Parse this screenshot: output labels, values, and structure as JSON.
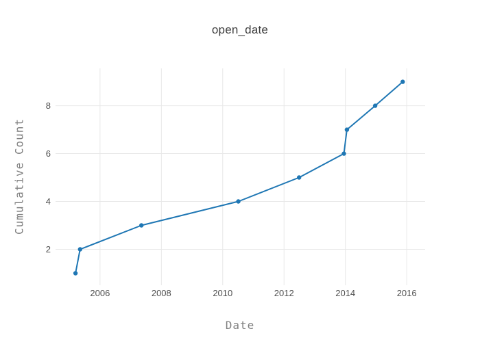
{
  "page": {
    "background_color": "#ffffff"
  },
  "chart_data": {
    "type": "line",
    "title": "open_date",
    "xlabel": "Date",
    "ylabel": "Cumulative Count",
    "legend_position": "none",
    "grid": true,
    "grid_color": "#e8e8e8",
    "series": [
      {
        "name": "open_date",
        "mode": "lines+markers",
        "color": "#1f77b4",
        "x": [
          2005.2,
          2005.35,
          2007.35,
          2010.51,
          2012.49,
          2013.95,
          2014.05,
          2014.97,
          2015.87
        ],
        "y": [
          1,
          2,
          3,
          4,
          5,
          6,
          7,
          8,
          9
        ]
      }
    ],
    "xlim": [
      2004.55,
      2016.6
    ],
    "ylim": [
      0.5,
      9.56
    ],
    "xticks": {
      "values": [
        2006,
        2008,
        2010,
        2012,
        2014,
        2016
      ],
      "labels": [
        "2006",
        "2008",
        "2010",
        "2012",
        "2014",
        "2016"
      ]
    },
    "yticks": {
      "values": [
        2,
        4,
        6,
        8
      ],
      "labels": [
        "2",
        "4",
        "6",
        "8"
      ]
    },
    "text_colors": {
      "title": "#3d3d3d",
      "tick_labels": "#4f4f4f",
      "axis_titles": "#7f7f7f"
    }
  }
}
